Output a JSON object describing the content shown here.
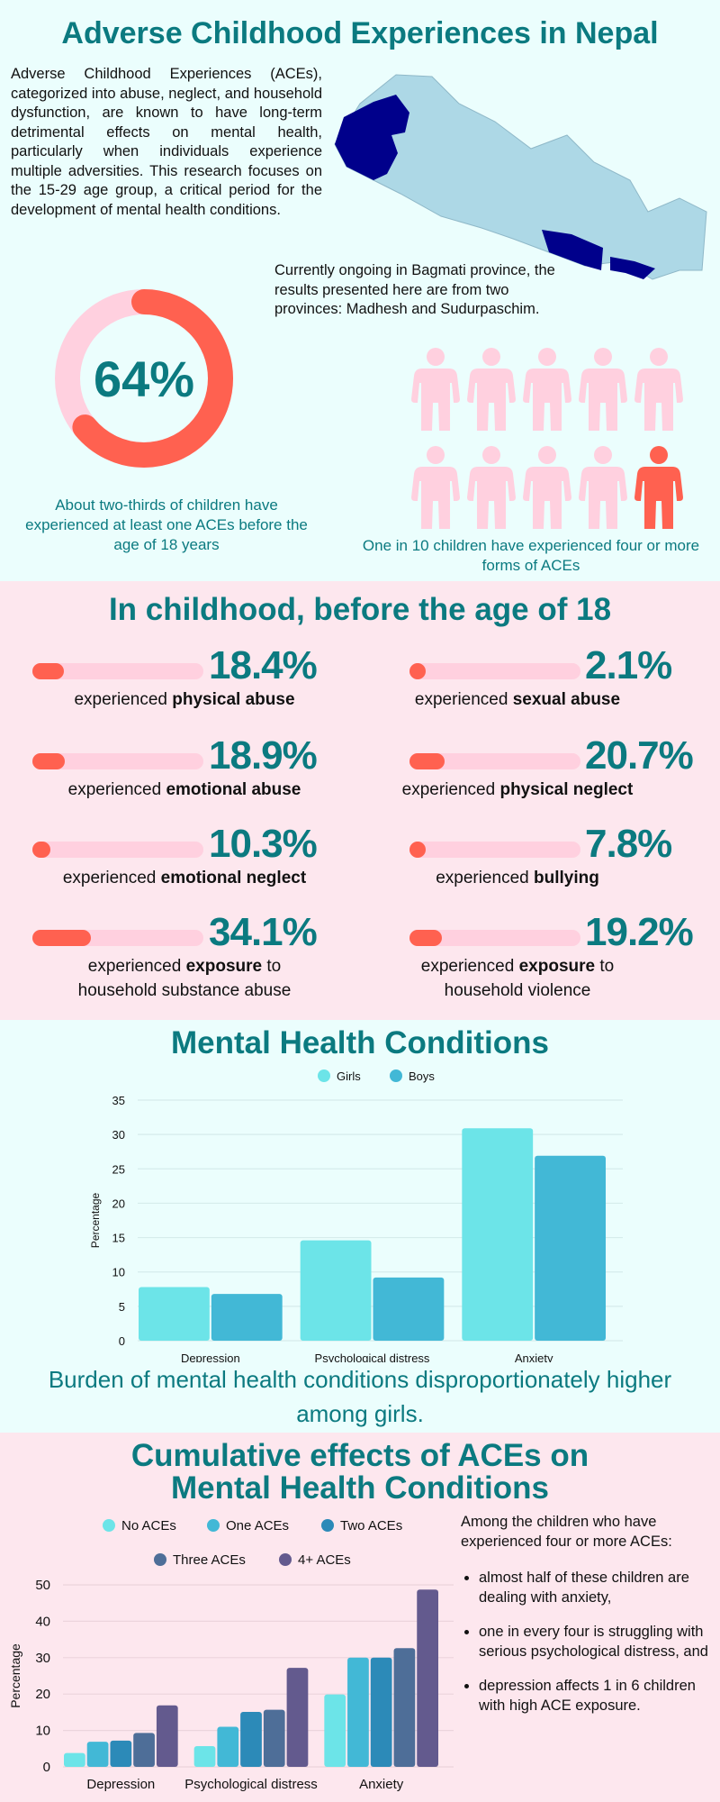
{
  "title": "Adverse Childhood Experiences in Nepal",
  "intro": "Adverse Childhood Experiences (ACEs), categorized into abuse, neglect, and household dysfunction, are known to have long-term detrimental effects on mental health, particularly when individuals experience multiple adversities. This research focuses on the 15-29 age group, a critical period for the development of mental health conditions.",
  "map_caption": "Currently ongoing in Bagmati province, the results presented here are from two provinces: Madhesh and Sudurpaschim.",
  "donut": {
    "value": 64,
    "label": "64%",
    "caption": "About two-thirds of children have experienced at least one ACEs before the age of 18 years"
  },
  "people": {
    "total": 10,
    "highlighted": 1,
    "caption": "One in 10 children have experienced four or more forms of ACEs"
  },
  "colors": {
    "teal": "#0b7a80",
    "coral": "#ff6150",
    "pinkLight": "#ffd0df",
    "mapLight": "#add8e6",
    "mapDark": "#00008b"
  },
  "childhood": {
    "heading": "In childhood, before the age of 18",
    "stats": [
      {
        "value": 18.4,
        "label": "18.4%",
        "prefix": "experienced ",
        "bold": "physical abuse",
        "suffix": ""
      },
      {
        "value": 2.1,
        "label": "2.1%",
        "prefix": "experienced ",
        "bold": "sexual abuse",
        "suffix": ""
      },
      {
        "value": 18.9,
        "label": "18.9%",
        "prefix": "experienced ",
        "bold": "emotional abuse",
        "suffix": ""
      },
      {
        "value": 20.7,
        "label": "20.7%",
        "prefix": "experienced ",
        "bold": "physical neglect",
        "suffix": ""
      },
      {
        "value": 10.3,
        "label": "10.3%",
        "prefix": "experienced ",
        "bold": "emotional neglect",
        "suffix": ""
      },
      {
        "value": 7.8,
        "label": "7.8%",
        "prefix": "experienced ",
        "bold": "bullying",
        "suffix": ""
      },
      {
        "value": 34.1,
        "label": "34.1%",
        "prefix": "experienced ",
        "bold": "exposure",
        "suffix": " to household substance abuse"
      },
      {
        "value": 19.2,
        "label": "19.2%",
        "prefix": "experienced ",
        "bold": "exposure",
        "suffix": " to household violence"
      }
    ]
  },
  "mental": {
    "heading": "Mental Health Conditions",
    "caption": "Burden of mental health conditions disproportionately higher among girls."
  },
  "cumulative": {
    "heading1": "Cumulative effects of ACEs on",
    "heading2": "Mental Health Conditions",
    "intro": "Among the children who have experienced four or more ACEs:",
    "bullets": [
      "almost half of these children are dealing with anxiety,",
      "one in every four is struggling with serious psychological distress, and",
      "depression affects 1 in 6 children with high ACE exposure."
    ]
  },
  "chart_data": [
    {
      "type": "bar",
      "title": "Mental Health Conditions",
      "xlabel": "",
      "ylabel": "Percentage",
      "ylim": [
        0,
        35
      ],
      "yticks": [
        0,
        5,
        10,
        15,
        20,
        25,
        30,
        35
      ],
      "legend": "top",
      "categories": [
        "Depression",
        "Psychological distress",
        "Anxiety"
      ],
      "series": [
        {
          "name": "Girls",
          "color": "#6ce4e8",
          "values": [
            7.8,
            14.6,
            30.9
          ]
        },
        {
          "name": "Boys",
          "color": "#42b8d6",
          "values": [
            6.8,
            9.2,
            26.9
          ]
        }
      ]
    },
    {
      "type": "bar",
      "title": "Cumulative effects of ACEs on Mental Health Conditions",
      "xlabel": "",
      "ylabel": "Percentage",
      "ylim": [
        0,
        50
      ],
      "yticks": [
        0,
        10,
        20,
        30,
        40,
        50
      ],
      "legend": "top",
      "categories": [
        "Depression",
        "Psychological distress",
        "Anxiety"
      ],
      "series": [
        {
          "name": "No ACEs",
          "color": "#6ce4e8",
          "values": [
            3.8,
            5.7,
            19.9
          ]
        },
        {
          "name": "One ACEs",
          "color": "#42b8d6",
          "values": [
            6.9,
            11.0,
            30.0
          ]
        },
        {
          "name": "Two ACEs",
          "color": "#2c8ab8",
          "values": [
            7.2,
            15.1,
            30.0
          ]
        },
        {
          "name": "Three ACEs",
          "color": "#4e6e98",
          "values": [
            9.3,
            15.7,
            32.6
          ]
        },
        {
          "name": "4+ ACEs",
          "color": "#635a8e",
          "values": [
            16.9,
            27.2,
            48.7
          ]
        }
      ]
    }
  ]
}
